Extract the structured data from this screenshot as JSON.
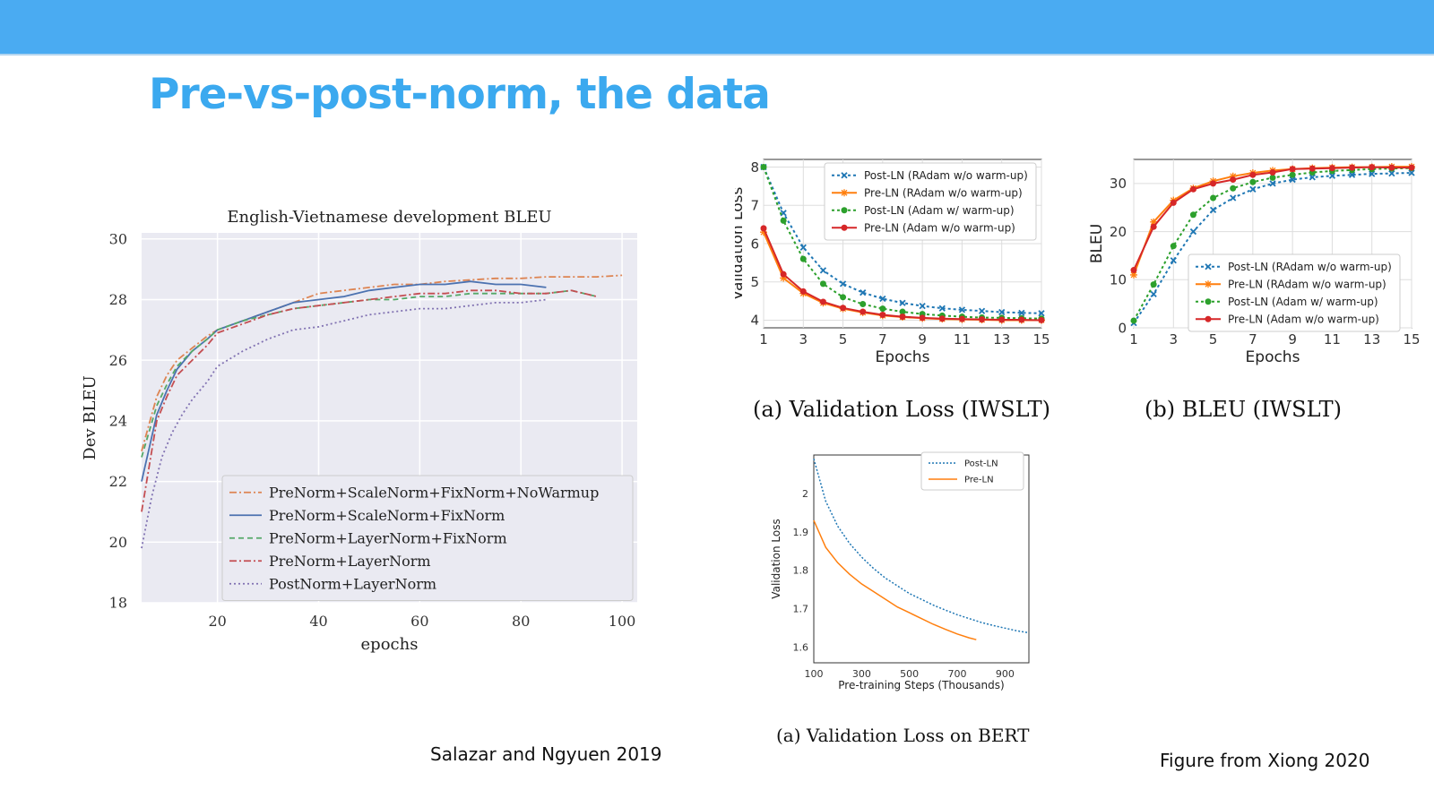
{
  "slide": {
    "title": "Pre-vs-post-norm, the data"
  },
  "citations": {
    "left": "Salazar and Ngyuen 2019",
    "right": "Figure from Xiong 2020"
  },
  "captions": {
    "val_loss": "(a)  Validation Loss (IWSLT)",
    "bleu": "(b)  BLEU (IWSLT)",
    "bert": "(a)  Validation Loss on BERT"
  },
  "colors": {
    "header_bar": "#4aabf2",
    "title": "#3ba9ef"
  },
  "chart_data": [
    {
      "type": "line",
      "title": "English-Vietnamese development BLEU",
      "xlabel": "epochs",
      "ylabel": "Dev BLEU",
      "xlim": [
        5,
        103
      ],
      "ylim": [
        18,
        30.2
      ],
      "xticks": [
        20,
        40,
        60,
        80,
        100
      ],
      "yticks": [
        18,
        20,
        22,
        24,
        26,
        28,
        30
      ],
      "grid": true,
      "legend_position": "lower-right",
      "series": [
        {
          "name": "PreNorm+ScaleNorm+FixNorm+NoWarmup",
          "color": "#dd8452",
          "dash": "8,3,2,3",
          "x": [
            5,
            8,
            10,
            12,
            15,
            18,
            20,
            25,
            30,
            35,
            40,
            45,
            50,
            55,
            60,
            65,
            70,
            75,
            80,
            85,
            90,
            95,
            100
          ],
          "y": [
            23.0,
            24.8,
            25.5,
            26.0,
            26.4,
            26.8,
            27.0,
            27.3,
            27.6,
            27.9,
            28.2,
            28.3,
            28.4,
            28.5,
            28.5,
            28.6,
            28.65,
            28.7,
            28.7,
            28.75,
            28.75,
            28.75,
            28.8
          ]
        },
        {
          "name": "PreNorm+ScaleNorm+FixNorm",
          "color": "#4c72b0",
          "dash": "",
          "x": [
            5,
            8,
            10,
            12,
            15,
            18,
            20,
            25,
            30,
            35,
            40,
            45,
            50,
            55,
            60,
            65,
            70,
            75,
            80,
            85
          ],
          "y": [
            22.0,
            24.2,
            25.0,
            25.7,
            26.3,
            26.7,
            27.0,
            27.3,
            27.6,
            27.9,
            28.0,
            28.1,
            28.3,
            28.4,
            28.5,
            28.5,
            28.6,
            28.5,
            28.5,
            28.4
          ]
        },
        {
          "name": "PreNorm+LayerNorm+FixNorm",
          "color": "#55a868",
          "dash": "6,4",
          "x": [
            5,
            8,
            10,
            12,
            15,
            18,
            20,
            25,
            30,
            35,
            40,
            45,
            50,
            55,
            60,
            65,
            70,
            75,
            80,
            85,
            90,
            95
          ],
          "y": [
            22.8,
            24.5,
            25.2,
            25.8,
            26.3,
            26.7,
            27.0,
            27.3,
            27.5,
            27.7,
            27.8,
            27.9,
            28.0,
            28.0,
            28.1,
            28.1,
            28.2,
            28.2,
            28.2,
            28.2,
            28.3,
            28.1
          ]
        },
        {
          "name": "PreNorm+LayerNorm",
          "color": "#c44e52",
          "dash": "8,3,2,3",
          "x": [
            5,
            8,
            10,
            12,
            15,
            18,
            20,
            25,
            30,
            35,
            40,
            45,
            50,
            55,
            60,
            65,
            70,
            75,
            80,
            85,
            90,
            95
          ],
          "y": [
            21.0,
            24.0,
            24.8,
            25.5,
            26.0,
            26.5,
            26.9,
            27.2,
            27.5,
            27.7,
            27.8,
            27.9,
            28.0,
            28.1,
            28.2,
            28.2,
            28.3,
            28.3,
            28.2,
            28.2,
            28.3,
            28.1
          ]
        },
        {
          "name": "PostNorm+LayerNorm",
          "color": "#8172b2",
          "dash": "2,3",
          "x": [
            5,
            7,
            9,
            11,
            13,
            15,
            18,
            20,
            25,
            30,
            35,
            40,
            45,
            50,
            55,
            60,
            65,
            70,
            75,
            80,
            85
          ],
          "y": [
            19.8,
            21.5,
            22.8,
            23.6,
            24.2,
            24.7,
            25.3,
            25.8,
            26.3,
            26.7,
            27.0,
            27.1,
            27.3,
            27.5,
            27.6,
            27.7,
            27.7,
            27.8,
            27.9,
            27.9,
            28.0
          ]
        }
      ]
    },
    {
      "type": "line",
      "title": "",
      "xlabel": "Epochs",
      "ylabel": "Validation Loss",
      "xlim": [
        1,
        15
      ],
      "ylim": [
        3.8,
        8.2
      ],
      "xticks": [
        1,
        3,
        5,
        7,
        9,
        11,
        13,
        15
      ],
      "yticks": [
        4,
        5,
        6,
        7,
        8
      ],
      "grid": true,
      "legend_position": "top-right",
      "series": [
        {
          "name": "Post-LN (RAdam w/o warm-up)",
          "color": "#1f77b4",
          "dash": "3,3",
          "marker": "x",
          "x": [
            1,
            2,
            3,
            4,
            5,
            6,
            7,
            8,
            9,
            10,
            11,
            12,
            13,
            14,
            15
          ],
          "y": [
            8.0,
            6.8,
            5.9,
            5.3,
            4.95,
            4.72,
            4.56,
            4.45,
            4.37,
            4.31,
            4.27,
            4.24,
            4.21,
            4.19,
            4.18
          ]
        },
        {
          "name": "Pre-LN (RAdam w/o warm-up)",
          "color": "#ff7f0e",
          "dash": "",
          "marker": "star",
          "x": [
            1,
            2,
            3,
            4,
            5,
            6,
            7,
            8,
            9,
            10,
            11,
            12,
            13,
            14,
            15
          ],
          "y": [
            6.3,
            5.1,
            4.7,
            4.45,
            4.3,
            4.2,
            4.12,
            4.08,
            4.05,
            4.03,
            4.02,
            4.01,
            4.0,
            4.0,
            4.0
          ]
        },
        {
          "name": "Post-LN (Adam w/ warm-up)",
          "color": "#2ca02c",
          "dash": "3,3",
          "marker": "dot",
          "x": [
            1,
            2,
            3,
            4,
            5,
            6,
            7,
            8,
            9,
            10,
            11,
            12,
            13,
            14,
            15
          ],
          "y": [
            8.0,
            6.6,
            5.6,
            4.95,
            4.6,
            4.42,
            4.3,
            4.22,
            4.16,
            4.12,
            4.09,
            4.07,
            4.06,
            4.05,
            4.04
          ]
        },
        {
          "name": "Pre-LN (Adam w/o warm-up)",
          "color": "#d62728",
          "dash": "",
          "marker": "dot",
          "x": [
            1,
            2,
            3,
            4,
            5,
            6,
            7,
            8,
            9,
            10,
            11,
            12,
            13,
            14,
            15
          ],
          "y": [
            6.4,
            5.2,
            4.75,
            4.48,
            4.32,
            4.22,
            4.14,
            4.09,
            4.06,
            4.04,
            4.03,
            4.02,
            4.01,
            4.01,
            4.0
          ]
        }
      ]
    },
    {
      "type": "line",
      "title": "",
      "xlabel": "Epochs",
      "ylabel": "BLEU",
      "xlim": [
        1,
        15
      ],
      "ylim": [
        0,
        35
      ],
      "xticks": [
        1,
        3,
        5,
        7,
        9,
        11,
        13,
        15
      ],
      "yticks": [
        0,
        10,
        20,
        30
      ],
      "grid": true,
      "legend_position": "lower-right",
      "series": [
        {
          "name": "Post-LN (RAdam w/o warm-up)",
          "color": "#1f77b4",
          "dash": "3,3",
          "marker": "x",
          "x": [
            1,
            2,
            3,
            4,
            5,
            6,
            7,
            8,
            9,
            10,
            11,
            12,
            13,
            14,
            15
          ],
          "y": [
            1,
            7,
            14,
            20,
            24.5,
            27,
            28.8,
            30,
            30.8,
            31.3,
            31.6,
            31.8,
            32,
            32.1,
            32.2
          ]
        },
        {
          "name": "Pre-LN (RAdam w/o warm-up)",
          "color": "#ff7f0e",
          "dash": "",
          "marker": "star",
          "x": [
            1,
            2,
            3,
            4,
            5,
            6,
            7,
            8,
            9,
            10,
            11,
            12,
            13,
            14,
            15
          ],
          "y": [
            11,
            22,
            26.5,
            29,
            30.5,
            31.5,
            32.2,
            32.7,
            33,
            33.2,
            33.3,
            33.4,
            33.4,
            33.5,
            33.5
          ]
        },
        {
          "name": "Post-LN (Adam w/ warm-up)",
          "color": "#2ca02c",
          "dash": "3,3",
          "marker": "dot",
          "x": [
            1,
            2,
            3,
            4,
            5,
            6,
            7,
            8,
            9,
            10,
            11,
            12,
            13,
            14,
            15
          ],
          "y": [
            1.5,
            9,
            17,
            23.5,
            27,
            29,
            30.3,
            31.2,
            31.8,
            32.3,
            32.6,
            32.8,
            33,
            33.1,
            33.2
          ]
        },
        {
          "name": "Pre-LN (Adam w/o warm-up)",
          "color": "#d62728",
          "dash": "",
          "marker": "dot",
          "x": [
            1,
            2,
            3,
            4,
            5,
            6,
            7,
            8,
            9,
            10,
            11,
            12,
            13,
            14,
            15
          ],
          "y": [
            12,
            21,
            26,
            28.8,
            30,
            30.8,
            31.8,
            32.3,
            33,
            33.1,
            33.2,
            33.3,
            33.4,
            33.3,
            33.3
          ]
        }
      ]
    },
    {
      "type": "line",
      "title": "",
      "xlabel": "Pre-training Steps (Thousands)",
      "ylabel": "Validation Loss",
      "xlim": [
        100,
        1000
      ],
      "ylim": [
        1.56,
        2.1
      ],
      "xticks": [
        100,
        300,
        500,
        700,
        900
      ],
      "yticks": [
        1.6,
        1.7,
        1.8,
        1.9,
        2.0
      ],
      "grid": false,
      "legend_position": "top-right",
      "series": [
        {
          "name": "Post-LN",
          "color": "#1f77b4",
          "dash": "2,2",
          "x": [
            100,
            150,
            200,
            250,
            300,
            350,
            400,
            450,
            500,
            550,
            600,
            650,
            700,
            750,
            800,
            850,
            900,
            950,
            1000
          ],
          "y": [
            2.09,
            1.98,
            1.915,
            1.87,
            1.835,
            1.805,
            1.78,
            1.76,
            1.74,
            1.725,
            1.71,
            1.697,
            1.685,
            1.675,
            1.665,
            1.657,
            1.65,
            1.643,
            1.638
          ]
        },
        {
          "name": "Pre-LN",
          "color": "#ff7f0e",
          "dash": "",
          "x": [
            100,
            150,
            200,
            250,
            300,
            350,
            400,
            450,
            500,
            550,
            600,
            650,
            700,
            750,
            780
          ],
          "y": [
            1.93,
            1.86,
            1.82,
            1.79,
            1.765,
            1.745,
            1.725,
            1.705,
            1.69,
            1.675,
            1.66,
            1.647,
            1.635,
            1.625,
            1.62
          ]
        }
      ]
    }
  ]
}
